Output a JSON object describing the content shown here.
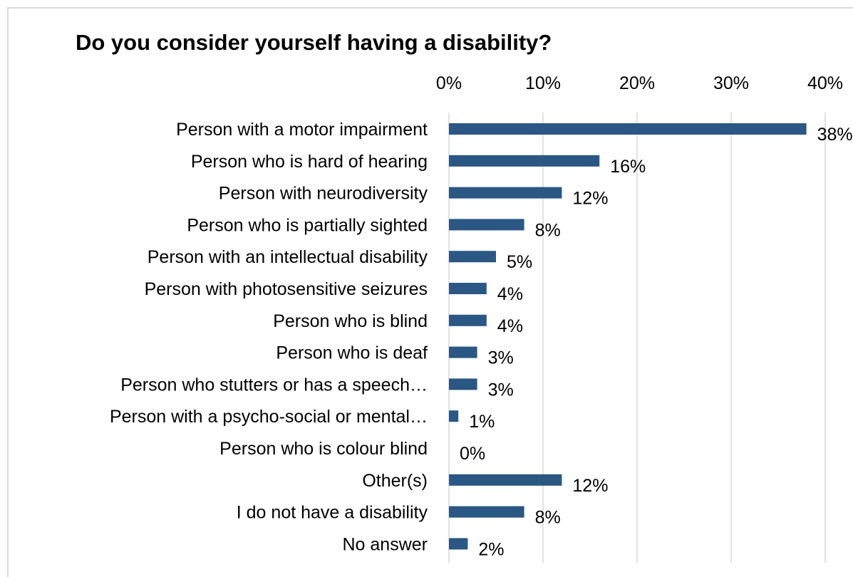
{
  "chart_data": {
    "type": "bar",
    "orientation": "horizontal",
    "title": "Do you consider yourself having a disability?",
    "categories": [
      "Person with a motor impairment",
      "Person who is hard of hearing",
      "Person with neurodiversity",
      "Person who is partially sighted",
      "Person with an intellectual disability",
      "Person with photosensitive seizures",
      "Person who is blind",
      "Person who is deaf",
      "Person who stutters or has a speech…",
      "Person with a psycho-social or mental…",
      "Person who is colour blind",
      "Other(s)",
      "I do not have a disability",
      "No answer"
    ],
    "values": [
      38,
      16,
      12,
      8,
      5,
      4,
      4,
      3,
      3,
      1,
      0,
      12,
      8,
      2
    ],
    "value_labels": [
      "38%",
      "16%",
      "12%",
      "8%",
      "5%",
      "4%",
      "4%",
      "3%",
      "3%",
      "1%",
      "0%",
      "12%",
      "8%",
      "2%"
    ],
    "x_ticks": [
      "0%",
      "10%",
      "20%",
      "30%",
      "40%"
    ],
    "xlim": [
      0,
      40
    ],
    "x_axis_position": "top",
    "grid": true,
    "bar_color": "#2a5783",
    "grid_color": "#d9d9d9",
    "xlabel": "",
    "ylabel": ""
  }
}
